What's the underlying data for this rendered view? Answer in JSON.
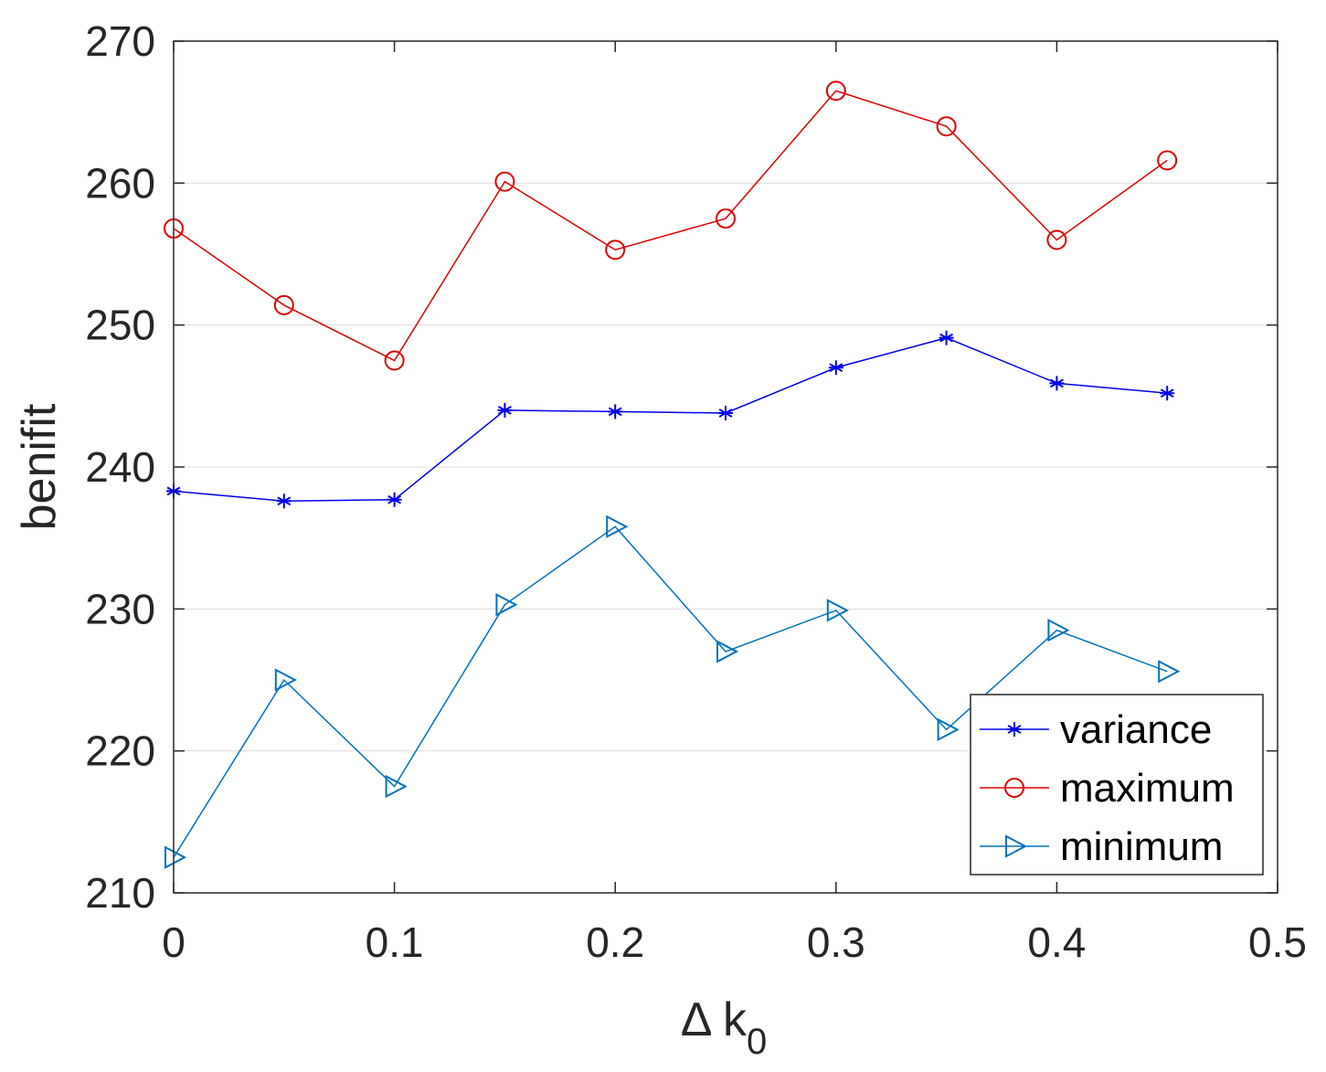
{
  "chart_data": {
    "type": "line",
    "title": "",
    "xlabel": "Δ k",
    "xlabel_subscript": "0",
    "ylabel": "benifit",
    "xlim": [
      0,
      0.5
    ],
    "ylim": [
      210,
      270
    ],
    "xticks": [
      0,
      0.1,
      0.2,
      0.3,
      0.4,
      0.5
    ],
    "xtick_labels": [
      "0",
      "0.1",
      "0.2",
      "0.3",
      "0.4",
      "0.5"
    ],
    "yticks": [
      210,
      220,
      230,
      240,
      250,
      260,
      270
    ],
    "ytick_labels": [
      "210",
      "220",
      "230",
      "240",
      "250",
      "260",
      "270"
    ],
    "grid": "horizontal",
    "legend_position": "bottom-right",
    "x": [
      0,
      0.05,
      0.1,
      0.15,
      0.2,
      0.25,
      0.3,
      0.35,
      0.4,
      0.45
    ],
    "series": [
      {
        "name": "variance",
        "marker": "asterisk",
        "color": "#0000ee",
        "values": [
          238.3,
          237.6,
          237.7,
          244.0,
          243.9,
          243.8,
          247.0,
          249.1,
          245.9,
          245.2
        ]
      },
      {
        "name": "maximum",
        "marker": "circle",
        "color": "#e00000",
        "values": [
          256.8,
          251.4,
          247.5,
          260.1,
          255.3,
          257.5,
          266.5,
          264.0,
          256.0,
          261.6
        ]
      },
      {
        "name": "minimum",
        "marker": "triangle-right",
        "color": "#0072bd",
        "values": [
          212.5,
          225.0,
          217.5,
          230.3,
          235.8,
          227.0,
          229.9,
          221.5,
          228.5,
          225.6
        ]
      }
    ]
  }
}
